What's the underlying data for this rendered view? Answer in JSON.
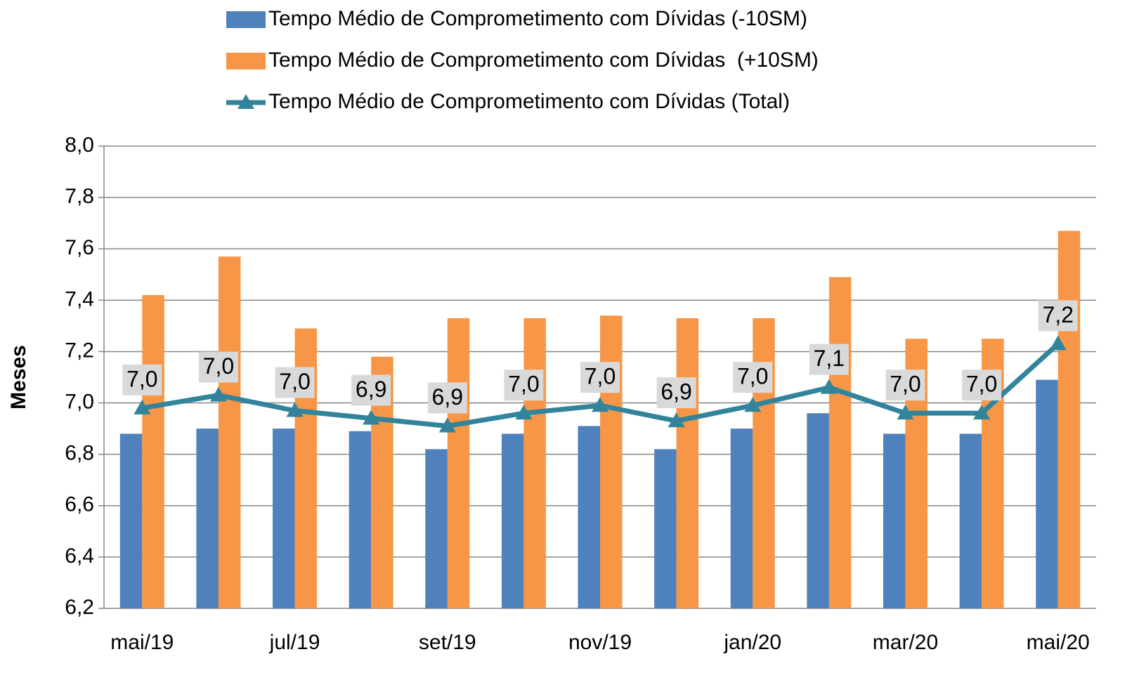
{
  "chart_data": {
    "type": "bar_line",
    "y_label": "Meses",
    "categories": [
      "mai/19",
      null,
      "jul/19",
      null,
      "set/19",
      null,
      "nov/19",
      null,
      "jan/20",
      null,
      "mar/20",
      null,
      "mai/20"
    ],
    "series": [
      {
        "name": "Tempo Médio de Comprometimento com Dívidas (-10SM)",
        "type": "bar",
        "color": "#4f81bd",
        "values": [
          6.88,
          6.9,
          6.9,
          6.89,
          6.82,
          6.88,
          6.91,
          6.82,
          6.9,
          6.96,
          6.88,
          6.88,
          7.09
        ]
      },
      {
        "name": "Tempo Médio de Comprometimento com Dívidas  (+10SM)",
        "type": "bar",
        "color": "#f79646",
        "values": [
          7.42,
          7.57,
          7.29,
          7.18,
          7.33,
          7.33,
          7.34,
          7.33,
          7.33,
          7.49,
          7.25,
          7.25,
          7.67
        ]
      },
      {
        "name": "Tempo Médio de Comprometimento com Dívidas (Total)",
        "type": "line",
        "color": "#31849b",
        "values": [
          6.98,
          7.03,
          6.97,
          6.94,
          6.91,
          6.96,
          6.99,
          6.93,
          6.99,
          7.06,
          6.96,
          6.96,
          7.23
        ],
        "value_labels": [
          "7,0",
          "7,0",
          "7,0",
          "6,9",
          "6,9",
          "7,0",
          "7,0",
          "6,9",
          "7,0",
          "7,1",
          "7,0",
          "7,0",
          "7,2"
        ]
      }
    ],
    "ylim": [
      6.2,
      8.0
    ],
    "yticks": [
      {
        "value": 6.2,
        "label": "6,2"
      },
      {
        "value": 6.4,
        "label": "6,4"
      },
      {
        "value": 6.6,
        "label": "6,6"
      },
      {
        "value": 6.8,
        "label": "6,8"
      },
      {
        "value": 7.0,
        "label": "7,0"
      },
      {
        "value": 7.2,
        "label": "7,2"
      },
      {
        "value": 7.4,
        "label": "7,4"
      },
      {
        "value": 7.6,
        "label": "7,6"
      },
      {
        "value": 7.8,
        "label": "7,8"
      },
      {
        "value": 8.0,
        "label": "8,0"
      }
    ],
    "grid": true,
    "legend": "top"
  }
}
